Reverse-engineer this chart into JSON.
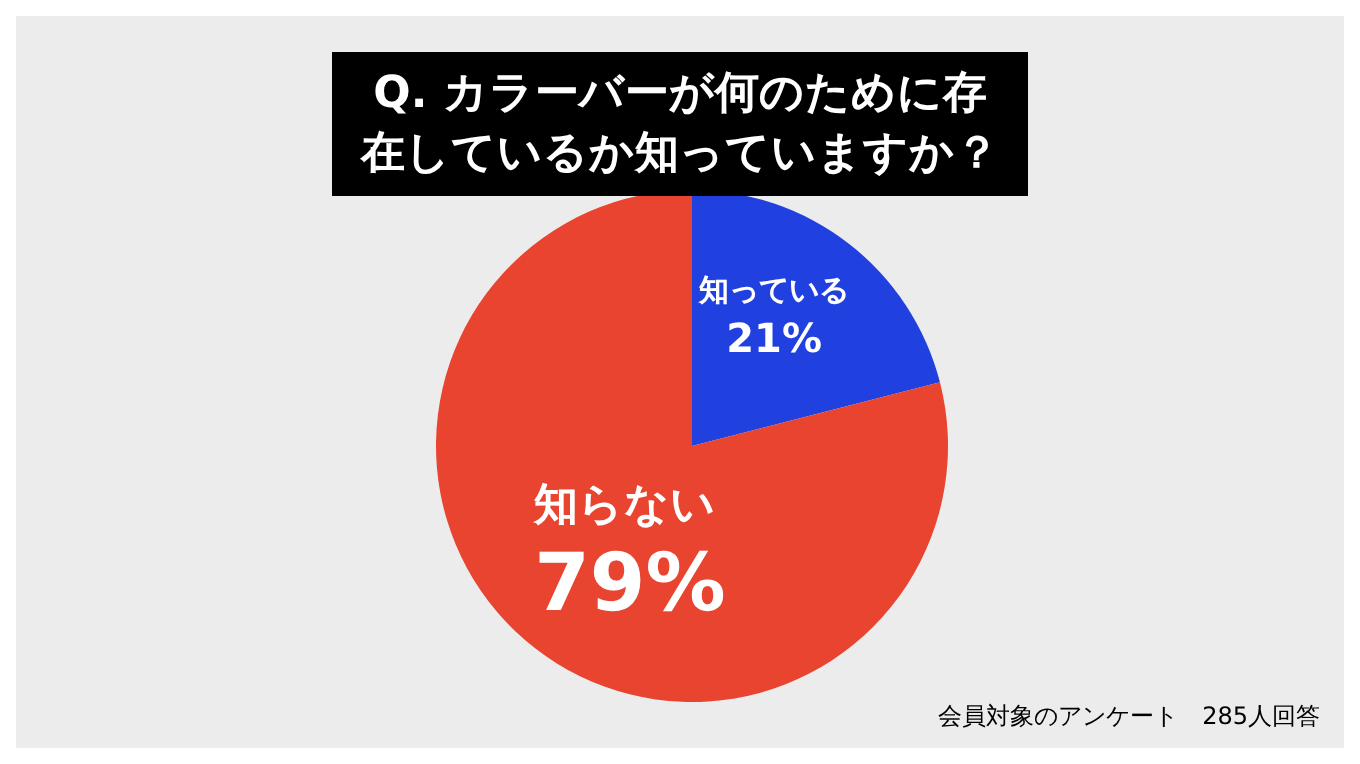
{
  "chart_data": {
    "type": "pie",
    "title": "Q. カラーバーが何のために存在しているか知っていますか？",
    "categories": [
      "知っている",
      "知らない"
    ],
    "values": [
      21,
      79
    ],
    "colors": [
      "#2040e0",
      "#e84430"
    ],
    "value_labels": [
      "21%",
      "79%"
    ],
    "annotations": [
      "会員対象のアンケート　285人回答"
    ]
  }
}
